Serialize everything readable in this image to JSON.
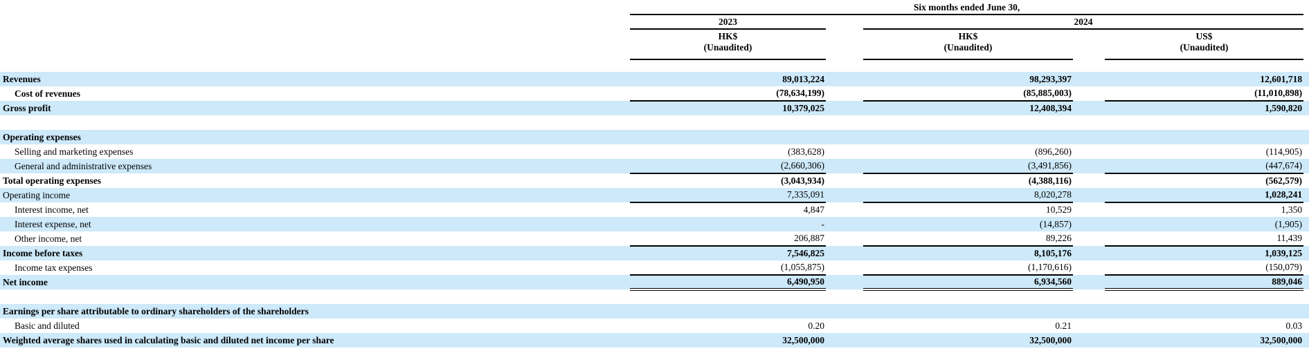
{
  "colors": {
    "stripe": "#cde9fa",
    "line": "#000000",
    "text": "#000000"
  },
  "header": {
    "period": "Six months ended June 30,",
    "groups": {
      "left_year": "2023",
      "right_year": "2024"
    },
    "subcols": [
      {
        "currency": "HK$",
        "note": "(Unaudited)"
      },
      {
        "currency": "HK$",
        "note": "(Unaudited)"
      },
      {
        "currency": "US$",
        "note": "(Unaudited)"
      }
    ]
  },
  "rows": [
    {
      "label": "Revenues",
      "indent": false,
      "bold": true,
      "shaded": true,
      "border": "none",
      "values": [
        "89,013,224",
        "98,293,397",
        "12,601,718"
      ],
      "bold_values": [
        true,
        true,
        true
      ]
    },
    {
      "label": "Cost of revenues",
      "indent": true,
      "bold": true,
      "shaded": false,
      "border": "single",
      "values": [
        "(78,634,199)",
        "(85,885,003)",
        "(11,010,898)"
      ],
      "bold_values": [
        true,
        true,
        true
      ]
    },
    {
      "label": "Gross profit",
      "indent": false,
      "bold": true,
      "shaded": true,
      "border": "none",
      "values": [
        "10,379,025",
        "12,408,394",
        "1,590,820"
      ],
      "bold_values": [
        true,
        true,
        true
      ]
    },
    {
      "label": "",
      "indent": false,
      "bold": false,
      "shaded": false,
      "border": "none",
      "values": [],
      "bold_values": []
    },
    {
      "label": "Operating expenses",
      "indent": false,
      "bold": true,
      "shaded": true,
      "border": "none",
      "values": [],
      "bold_values": []
    },
    {
      "label": "Selling and marketing expenses",
      "indent": true,
      "bold": false,
      "shaded": false,
      "border": "none",
      "values": [
        "(383,628)",
        "(896,260)",
        "(114,905)"
      ],
      "bold_values": [
        false,
        false,
        false
      ]
    },
    {
      "label": "General and administrative expenses",
      "indent": true,
      "bold": false,
      "shaded": true,
      "border": "single",
      "values": [
        "(2,660,306)",
        "(3,491,856)",
        "(447,674)"
      ],
      "bold_values": [
        false,
        false,
        false
      ]
    },
    {
      "label": "Total operating expenses",
      "indent": false,
      "bold": true,
      "shaded": false,
      "border": "none",
      "values": [
        "(3,043,934)",
        "(4,388,116)",
        "(562,579)"
      ],
      "bold_values": [
        true,
        true,
        true
      ]
    },
    {
      "label": "Operating income",
      "indent": false,
      "bold": false,
      "shaded": true,
      "border": "single",
      "values": [
        "7,335,091",
        "8,020,278",
        "1,028,241"
      ],
      "bold_values": [
        false,
        false,
        true
      ]
    },
    {
      "label": "Interest income, net",
      "indent": true,
      "bold": false,
      "shaded": false,
      "border": "none",
      "values": [
        "4,847",
        "10,529",
        "1,350"
      ],
      "bold_values": [
        false,
        false,
        false
      ]
    },
    {
      "label": "Interest expense, net",
      "indent": true,
      "bold": false,
      "shaded": true,
      "border": "none",
      "values": [
        "-",
        "(14,857)",
        "(1,905)"
      ],
      "bold_values": [
        false,
        false,
        false
      ]
    },
    {
      "label": "Other income, net",
      "indent": true,
      "bold": false,
      "shaded": false,
      "border": "single",
      "values": [
        "206,887",
        "89,226",
        "11,439"
      ],
      "bold_values": [
        false,
        false,
        false
      ]
    },
    {
      "label": "Income before taxes",
      "indent": false,
      "bold": true,
      "shaded": true,
      "border": "none",
      "values": [
        "7,546,825",
        "8,105,176",
        "1,039,125"
      ],
      "bold_values": [
        true,
        true,
        true
      ]
    },
    {
      "label": "Income tax expenses",
      "indent": true,
      "bold": false,
      "shaded": false,
      "border": "single",
      "values": [
        "(1,055,875)",
        "(1,170,616)",
        "(150,079)"
      ],
      "bold_values": [
        false,
        false,
        false
      ]
    },
    {
      "label": "Net income",
      "indent": false,
      "bold": true,
      "shaded": true,
      "border": "double",
      "values": [
        "6,490,950",
        "6,934,560",
        "889,046"
      ],
      "bold_values": [
        true,
        true,
        true
      ]
    },
    {
      "label": "",
      "indent": false,
      "bold": false,
      "shaded": false,
      "border": "none",
      "values": [],
      "bold_values": []
    },
    {
      "label": "Earnings per share attributable to ordinary shareholders of the shareholders",
      "indent": false,
      "bold": true,
      "shaded": true,
      "border": "none",
      "values": [],
      "bold_values": []
    },
    {
      "label": "Basic and diluted",
      "indent": true,
      "bold": false,
      "shaded": false,
      "border": "none",
      "values": [
        "0.20",
        "0.21",
        "0.03"
      ],
      "bold_values": [
        false,
        false,
        false
      ]
    },
    {
      "label": "Weighted average shares used in calculating basic and diluted net income per share",
      "indent": false,
      "bold": true,
      "shaded": true,
      "border": "none",
      "values": [
        "32,500,000",
        "32,500,000",
        "32,500,000"
      ],
      "bold_values": [
        true,
        true,
        true
      ]
    }
  ]
}
